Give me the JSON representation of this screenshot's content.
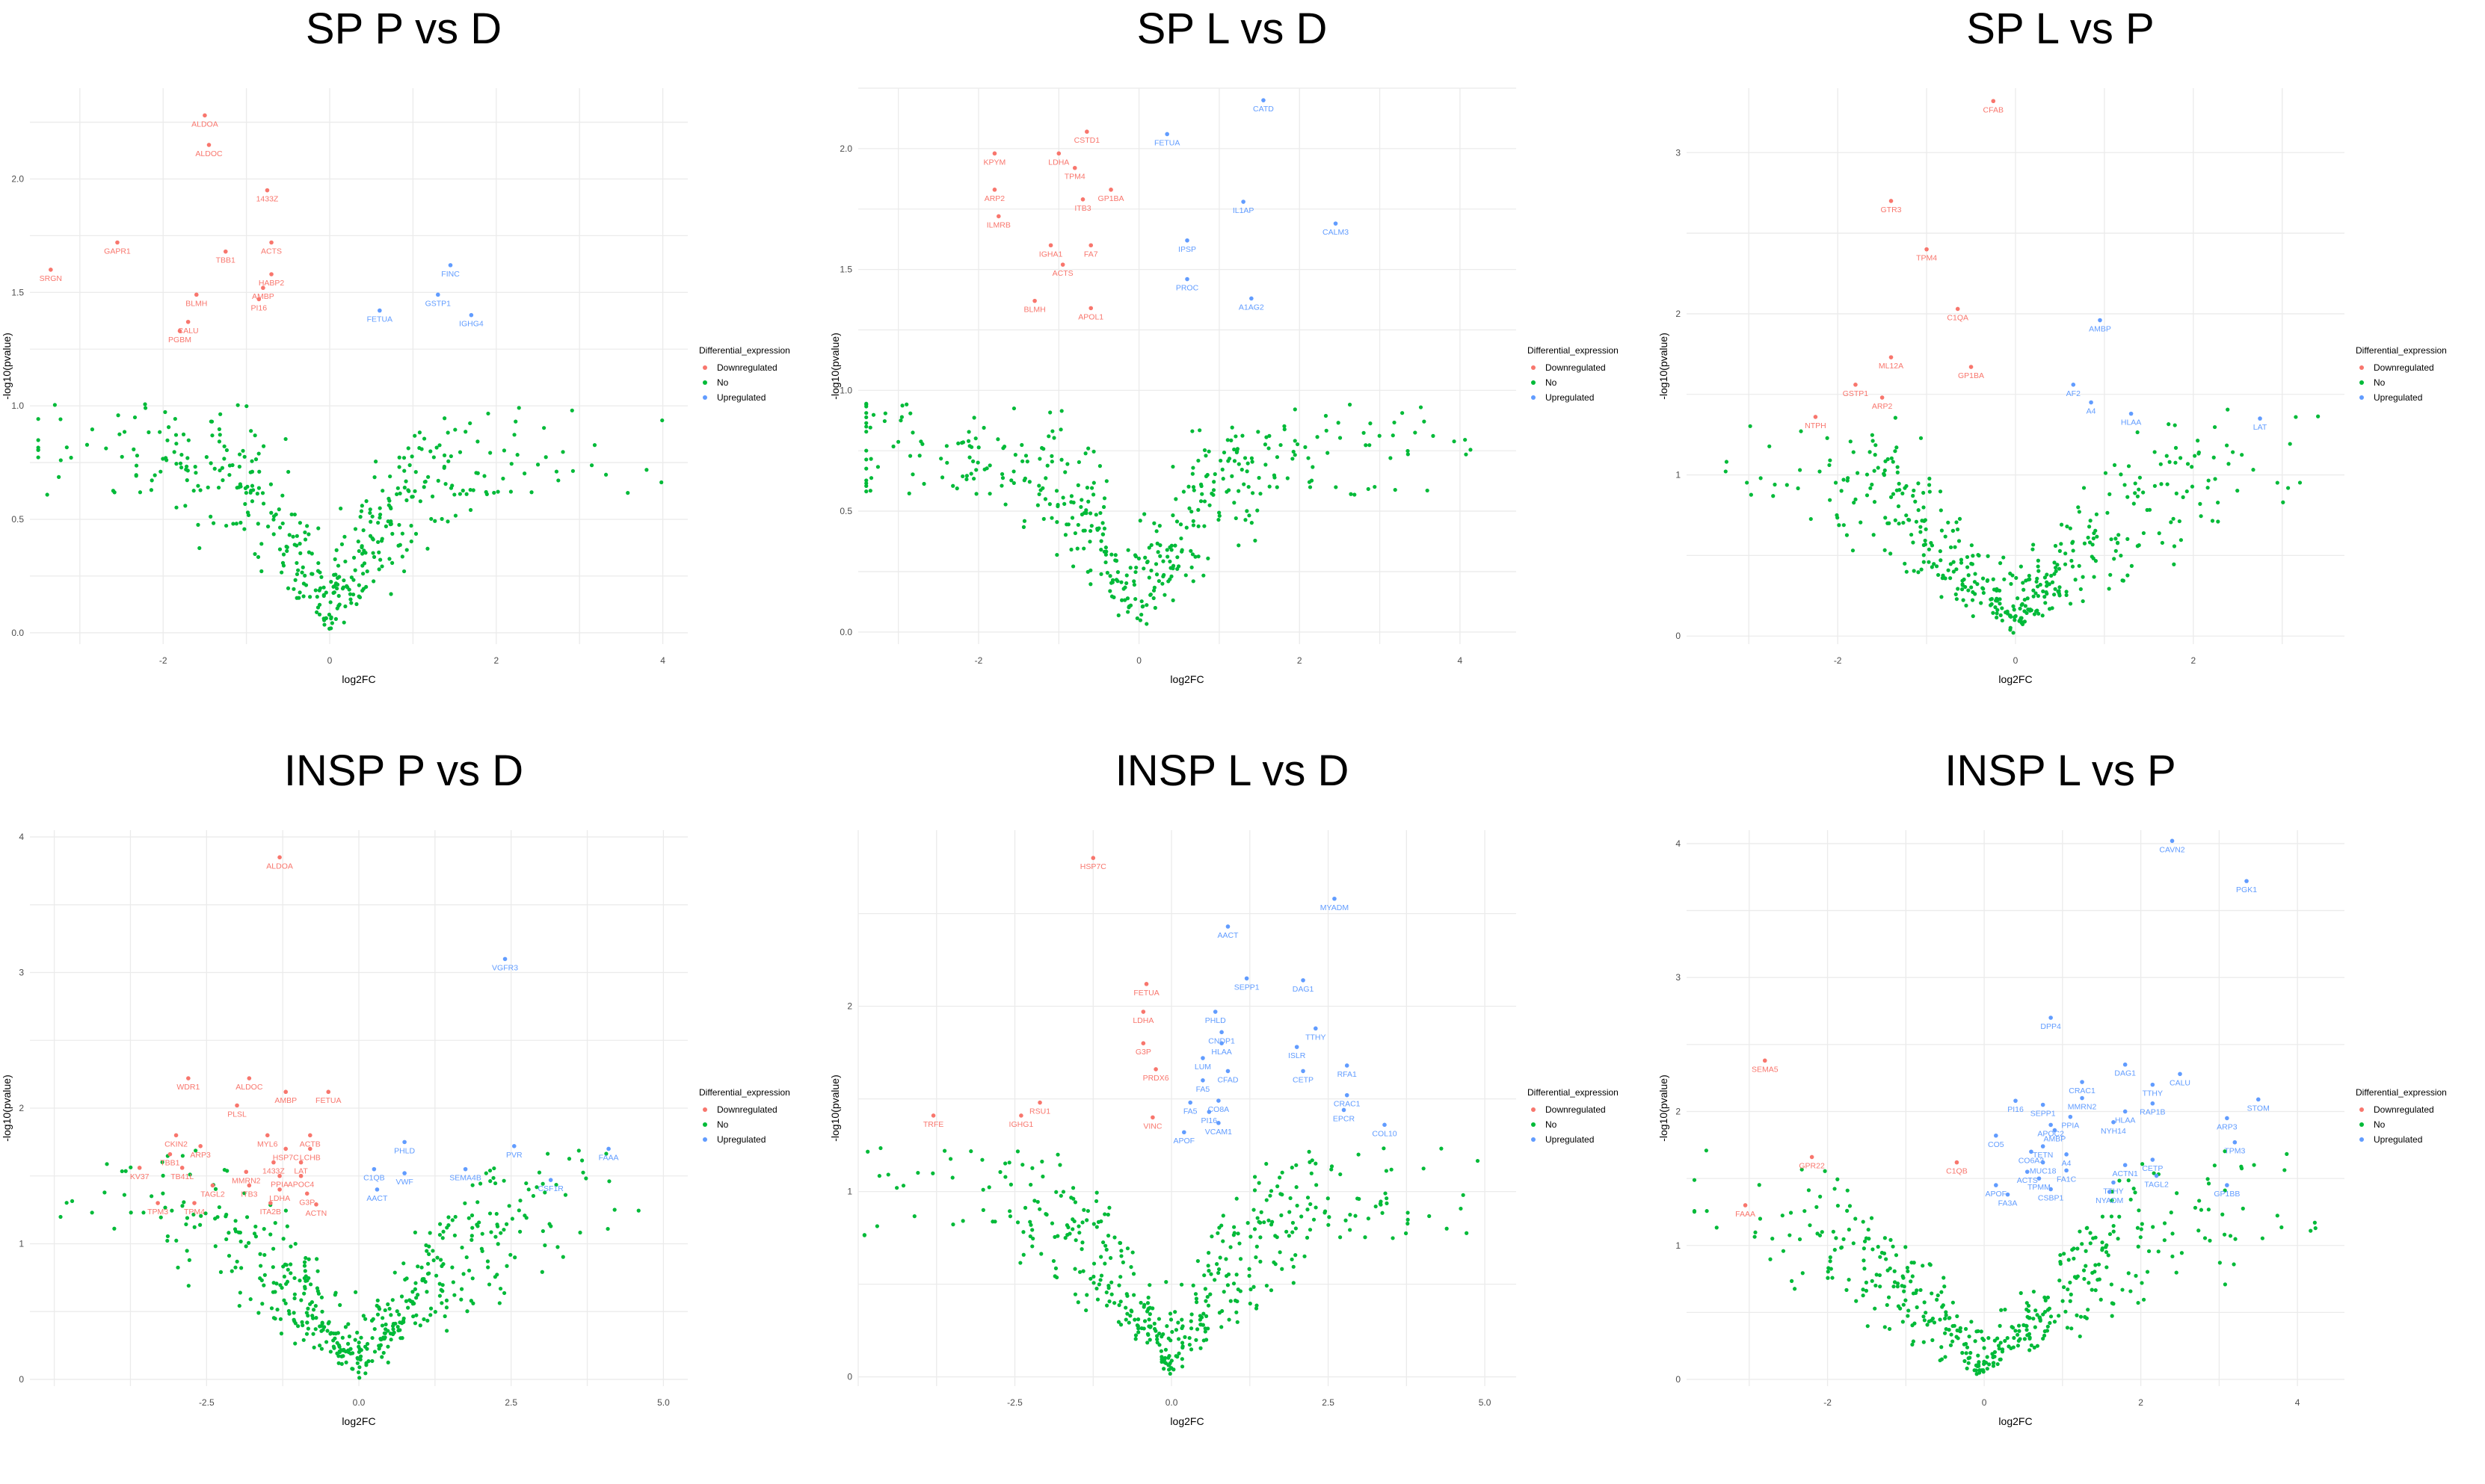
{
  "legend": {
    "title": "Differential_expression",
    "items": [
      {
        "label": "Downregulated",
        "color": "#F8766D"
      },
      {
        "label": "No",
        "color": "#00BA38"
      },
      {
        "label": "Upregulated",
        "color": "#619CFF"
      }
    ]
  },
  "chart_data": [
    {
      "type": "scatter",
      "title": "SP P vs D",
      "xlabel": "log2FC",
      "ylabel": "-log10(pvalue)",
      "xlim": [
        -3.6,
        4.3
      ],
      "ylim": [
        -0.05,
        2.4
      ],
      "xticks": [
        -2,
        0,
        2,
        4
      ],
      "xtick_labels": [
        "-2",
        "0",
        "2",
        "4"
      ],
      "yticks": [
        0,
        0.5,
        1,
        1.5,
        2
      ],
      "ytick_labels": [
        "0.0",
        "0.5",
        "1.0",
        "1.5",
        "2.0"
      ],
      "seed": 11,
      "ns_count": 430,
      "downregulated": [
        {
          "label": "ALDOA",
          "x": -1.5,
          "y": 2.28
        },
        {
          "label": "ALDOC",
          "x": -1.45,
          "y": 2.15
        },
        {
          "label": "1433Z",
          "x": -0.75,
          "y": 1.95
        },
        {
          "label": "GAPR1",
          "x": -2.55,
          "y": 1.72
        },
        {
          "label": "TBB1",
          "x": -1.25,
          "y": 1.68
        },
        {
          "label": "ACTS",
          "x": -0.7,
          "y": 1.72
        },
        {
          "label": "SRGN",
          "x": -3.35,
          "y": 1.6
        },
        {
          "label": "HABP2",
          "x": -0.7,
          "y": 1.58
        },
        {
          "label": "AMBP",
          "x": -0.8,
          "y": 1.52
        },
        {
          "label": "BLMH",
          "x": -1.6,
          "y": 1.49
        },
        {
          "label": "PI16",
          "x": -0.85,
          "y": 1.47
        },
        {
          "label": "CALU",
          "x": -1.7,
          "y": 1.37
        },
        {
          "label": "PGBM",
          "x": -1.8,
          "y": 1.33
        }
      ],
      "upregulated": [
        {
          "label": "FINC",
          "x": 1.45,
          "y": 1.62
        },
        {
          "label": "GSTP1",
          "x": 1.3,
          "y": 1.49
        },
        {
          "label": "FETUA",
          "x": 0.6,
          "y": 1.42
        },
        {
          "label": "IGHG4",
          "x": 1.7,
          "y": 1.4
        }
      ]
    },
    {
      "type": "scatter",
      "title": "SP L vs D",
      "xlabel": "log2FC",
      "ylabel": "-log10(pvalue)",
      "xlim": [
        -3.5,
        4.7
      ],
      "ylim": [
        -0.05,
        2.25
      ],
      "xticks": [
        -2,
        0,
        2,
        4
      ],
      "xtick_labels": [
        "-2",
        "0",
        "2",
        "4"
      ],
      "yticks": [
        0,
        0.5,
        1,
        1.5,
        2
      ],
      "ytick_labels": [
        "0.0",
        "0.5",
        "1.0",
        "1.5",
        "2.0"
      ],
      "seed": 23,
      "ns_count": 430,
      "downregulated": [
        {
          "label": "CSTD1",
          "x": -0.65,
          "y": 2.07
        },
        {
          "label": "KPYM",
          "x": -1.8,
          "y": 1.98
        },
        {
          "label": "LDHA",
          "x": -1.0,
          "y": 1.98
        },
        {
          "label": "TPM4",
          "x": -0.8,
          "y": 1.92
        },
        {
          "label": "ARP2",
          "x": -1.8,
          "y": 1.83
        },
        {
          "label": "GP1BA",
          "x": -0.35,
          "y": 1.83
        },
        {
          "label": "ITB3",
          "x": -0.7,
          "y": 1.79
        },
        {
          "label": "ILMRB",
          "x": -1.75,
          "y": 1.72
        },
        {
          "label": "IGHA1",
          "x": -1.1,
          "y": 1.6
        },
        {
          "label": "FA7",
          "x": -0.6,
          "y": 1.6
        },
        {
          "label": "ACTS",
          "x": -0.95,
          "y": 1.52
        },
        {
          "label": "BLMH",
          "x": -1.3,
          "y": 1.37
        },
        {
          "label": "APOL1",
          "x": -0.6,
          "y": 1.34
        }
      ],
      "upregulated": [
        {
          "label": "CATD",
          "x": 1.55,
          "y": 2.2
        },
        {
          "label": "FETUA",
          "x": 0.35,
          "y": 2.06
        },
        {
          "label": "IL1AP",
          "x": 1.3,
          "y": 1.78
        },
        {
          "label": "CALM3",
          "x": 2.45,
          "y": 1.69
        },
        {
          "label": "IPSP",
          "x": 0.6,
          "y": 1.62
        },
        {
          "label": "PROC",
          "x": 0.6,
          "y": 1.46
        },
        {
          "label": "A1AG2",
          "x": 1.4,
          "y": 1.38
        }
      ]
    },
    {
      "type": "scatter",
      "title": "SP L vs P",
      "xlabel": "log2FC",
      "ylabel": "-log10(pvalue)",
      "xlim": [
        -3.7,
        3.7
      ],
      "ylim": [
        -0.05,
        3.4
      ],
      "xticks": [
        -2,
        0,
        2
      ],
      "xtick_labels": [
        "-2",
        "0",
        "2"
      ],
      "yticks": [
        0,
        1,
        2,
        3
      ],
      "ytick_labels": [
        "0",
        "1",
        "2",
        "3"
      ],
      "seed": 37,
      "ns_count": 430,
      "downregulated": [
        {
          "label": "CFAB",
          "x": -0.25,
          "y": 3.32
        },
        {
          "label": "GTR3",
          "x": -1.4,
          "y": 2.7
        },
        {
          "label": "TPM4",
          "x": -1.0,
          "y": 2.4
        },
        {
          "label": "C1QA",
          "x": -0.65,
          "y": 2.03
        },
        {
          "label": "ML12A",
          "x": -1.4,
          "y": 1.73
        },
        {
          "label": "GP1BA",
          "x": -0.5,
          "y": 1.67
        },
        {
          "label": "GSTP1",
          "x": -1.8,
          "y": 1.56
        },
        {
          "label": "ARP2",
          "x": -1.5,
          "y": 1.48
        },
        {
          "label": "NTPH",
          "x": -2.25,
          "y": 1.36
        }
      ],
      "upregulated": [
        {
          "label": "AMBP",
          "x": 0.95,
          "y": 1.96
        },
        {
          "label": "AF2",
          "x": 0.65,
          "y": 1.56
        },
        {
          "label": "A4",
          "x": 0.85,
          "y": 1.45
        },
        {
          "label": "HLAA",
          "x": 1.3,
          "y": 1.38
        },
        {
          "label": "LAT",
          "x": 2.75,
          "y": 1.35
        }
      ]
    },
    {
      "type": "scatter",
      "title": "INSP P vs D",
      "xlabel": "log2FC",
      "ylabel": "-log10(pvalue)",
      "xlim": [
        -5.4,
        5.4
      ],
      "ylim": [
        -0.05,
        4.05
      ],
      "xticks": [
        -2.5,
        0,
        2.5,
        5
      ],
      "xtick_labels": [
        "-2.5",
        "0.0",
        "2.5",
        "5.0"
      ],
      "yticks": [
        0,
        1,
        2,
        3,
        4
      ],
      "ytick_labels": [
        "0",
        "1",
        "2",
        "3",
        "4"
      ],
      "seed": 53,
      "ns_count": 470,
      "downregulated": [
        {
          "label": "ALDOA",
          "x": -1.3,
          "y": 3.85
        },
        {
          "label": "WDR1",
          "x": -2.8,
          "y": 2.22
        },
        {
          "label": "ALDOC",
          "x": -1.8,
          "y": 2.22
        },
        {
          "label": "AMBP",
          "x": -1.2,
          "y": 2.12
        },
        {
          "label": "FETUA",
          "x": -0.5,
          "y": 2.12
        },
        {
          "label": "PLSL",
          "x": -2.0,
          "y": 2.02
        },
        {
          "label": "CKIN2",
          "x": -3.0,
          "y": 1.8
        },
        {
          "label": "MYL6",
          "x": -1.5,
          "y": 1.8
        },
        {
          "label": "ACTB",
          "x": -0.8,
          "y": 1.8
        },
        {
          "label": "ARP3",
          "x": -2.6,
          "y": 1.72
        },
        {
          "label": "HSP7C",
          "x": -1.2,
          "y": 1.7
        },
        {
          "label": "LCHB",
          "x": -0.8,
          "y": 1.7
        },
        {
          "label": "TBB1",
          "x": -3.1,
          "y": 1.66
        },
        {
          "label": "1433Z",
          "x": -1.4,
          "y": 1.6
        },
        {
          "label": "LAT",
          "x": -0.95,
          "y": 1.6
        },
        {
          "label": "KV37",
          "x": -3.6,
          "y": 1.56
        },
        {
          "label": "TB41L",
          "x": -2.9,
          "y": 1.56
        },
        {
          "label": "MMRN2",
          "x": -1.85,
          "y": 1.53
        },
        {
          "label": "PPIA",
          "x": -1.3,
          "y": 1.5
        },
        {
          "label": "APOC4",
          "x": -0.95,
          "y": 1.5
        },
        {
          "label": "TAGL2",
          "x": -2.4,
          "y": 1.43
        },
        {
          "label": "ITB3",
          "x": -1.8,
          "y": 1.43
        },
        {
          "label": "LDHA",
          "x": -1.3,
          "y": 1.4
        },
        {
          "label": "G3P",
          "x": -0.85,
          "y": 1.37
        },
        {
          "label": "TPM3",
          "x": -3.3,
          "y": 1.3
        },
        {
          "label": "TPM4",
          "x": -2.7,
          "y": 1.3
        },
        {
          "label": "ITA2B",
          "x": -1.45,
          "y": 1.3
        },
        {
          "label": "ACTN",
          "x": -0.7,
          "y": 1.29
        }
      ],
      "upregulated": [
        {
          "label": "VGFR3",
          "x": 2.4,
          "y": 3.1
        },
        {
          "label": "PHLD",
          "x": 0.75,
          "y": 1.75
        },
        {
          "label": "PVR",
          "x": 2.55,
          "y": 1.72
        },
        {
          "label": "FAAA",
          "x": 4.1,
          "y": 1.7
        },
        {
          "label": "C1QB",
          "x": 0.25,
          "y": 1.55
        },
        {
          "label": "VWF",
          "x": 0.75,
          "y": 1.52
        },
        {
          "label": "SEMA4B",
          "x": 1.75,
          "y": 1.55
        },
        {
          "label": "CSF1R",
          "x": 3.15,
          "y": 1.47
        },
        {
          "label": "AACT",
          "x": 0.3,
          "y": 1.4
        }
      ]
    },
    {
      "type": "scatter",
      "title": "INSP L vs D",
      "xlabel": "log2FC",
      "ylabel": "-log10(pvalue)",
      "xlim": [
        -5.0,
        5.5
      ],
      "ylim": [
        -0.05,
        2.95
      ],
      "xticks": [
        -2.5,
        0,
        2.5,
        5
      ],
      "xtick_labels": [
        "-2.5",
        "0.0",
        "2.5",
        "5.0"
      ],
      "yticks": [
        0,
        1,
        2
      ],
      "ytick_labels": [
        "0",
        "1",
        "2"
      ],
      "seed": 71,
      "ns_count": 430,
      "downregulated": [
        {
          "label": "HSP7C",
          "x": -1.25,
          "y": 2.8
        },
        {
          "label": "FETUA",
          "x": -0.4,
          "y": 2.12
        },
        {
          "label": "LDHA",
          "x": -0.45,
          "y": 1.97
        },
        {
          "label": "G3P",
          "x": -0.45,
          "y": 1.8
        },
        {
          "label": "PRDX6",
          "x": -0.25,
          "y": 1.66
        },
        {
          "label": "RSU1",
          "x": -2.1,
          "y": 1.48
        },
        {
          "label": "IGHG1",
          "x": -2.4,
          "y": 1.41
        },
        {
          "label": "VINC",
          "x": -0.3,
          "y": 1.4
        },
        {
          "label": "TRFE",
          "x": -3.8,
          "y": 1.41
        }
      ],
      "upregulated": [
        {
          "label": "MYADM",
          "x": 2.6,
          "y": 2.58
        },
        {
          "label": "AACT",
          "x": 0.9,
          "y": 2.43
        },
        {
          "label": "SEPP1",
          "x": 1.2,
          "y": 2.15
        },
        {
          "label": "DAG1",
          "x": 2.1,
          "y": 2.14
        },
        {
          "label": "PHLD",
          "x": 0.7,
          "y": 1.97
        },
        {
          "label": "TTHY",
          "x": 2.3,
          "y": 1.88
        },
        {
          "label": "CNDP1",
          "x": 0.8,
          "y": 1.86
        },
        {
          "label": "HLAA",
          "x": 0.8,
          "y": 1.8
        },
        {
          "label": "ISLR",
          "x": 2.0,
          "y": 1.78
        },
        {
          "label": "LUM",
          "x": 0.5,
          "y": 1.72
        },
        {
          "label": "RFA1",
          "x": 2.8,
          "y": 1.68
        },
        {
          "label": "CFAD",
          "x": 0.9,
          "y": 1.65
        },
        {
          "label": "CETP",
          "x": 2.1,
          "y": 1.65
        },
        {
          "label": "FA5",
          "x": 0.5,
          "y": 1.6
        },
        {
          "label": "CRAC1",
          "x": 2.8,
          "y": 1.52
        },
        {
          "label": "CO8A",
          "x": 0.75,
          "y": 1.49
        },
        {
          "label": "FA5",
          "x": 0.3,
          "y": 1.48
        },
        {
          "label": "EPCR",
          "x": 2.75,
          "y": 1.44
        },
        {
          "label": "PI16",
          "x": 0.6,
          "y": 1.43
        },
        {
          "label": "COL10",
          "x": 3.4,
          "y": 1.36
        },
        {
          "label": "VCAM1",
          "x": 0.75,
          "y": 1.37
        },
        {
          "label": "APOF",
          "x": 0.2,
          "y": 1.32
        }
      ]
    },
    {
      "type": "scatter",
      "title": "INSP L vs P",
      "xlabel": "log2FC",
      "ylabel": "-log10(pvalue)",
      "xlim": [
        -3.8,
        4.6
      ],
      "ylim": [
        -0.05,
        4.1
      ],
      "xticks": [
        -2,
        0,
        2,
        4
      ],
      "xtick_labels": [
        "-2",
        "0",
        "2",
        "4"
      ],
      "yticks": [
        0,
        1,
        2,
        3,
        4
      ],
      "ytick_labels": [
        "0",
        "1",
        "2",
        "3",
        "4"
      ],
      "seed": 97,
      "ns_count": 430,
      "downregulated": [
        {
          "label": "SEMA5",
          "x": -2.8,
          "y": 2.38
        },
        {
          "label": "GPR22",
          "x": -2.2,
          "y": 1.66
        },
        {
          "label": "C1QB",
          "x": -0.35,
          "y": 1.62
        },
        {
          "label": "FAAA",
          "x": -3.05,
          "y": 1.3
        }
      ],
      "upregulated": [
        {
          "label": "CAVN2",
          "x": 2.4,
          "y": 4.02
        },
        {
          "label": "PGK1",
          "x": 3.35,
          "y": 3.72
        },
        {
          "label": "DPP4",
          "x": 0.85,
          "y": 2.7
        },
        {
          "label": "DAG1",
          "x": 1.8,
          "y": 2.35
        },
        {
          "label": "CALU",
          "x": 2.5,
          "y": 2.28
        },
        {
          "label": "CRAC1",
          "x": 1.25,
          "y": 2.22
        },
        {
          "label": "TTHY",
          "x": 2.15,
          "y": 2.2
        },
        {
          "label": "STOM",
          "x": 3.5,
          "y": 2.09
        },
        {
          "label": "MMRN2",
          "x": 1.25,
          "y": 2.1
        },
        {
          "label": "PI16",
          "x": 0.4,
          "y": 2.08
        },
        {
          "label": "SEPP1",
          "x": 0.75,
          "y": 2.05
        },
        {
          "label": "RAP1B",
          "x": 2.15,
          "y": 2.06
        },
        {
          "label": "HLAA",
          "x": 1.8,
          "y": 2.0
        },
        {
          "label": "ARP3",
          "x": 3.1,
          "y": 1.95
        },
        {
          "label": "PPIA",
          "x": 1.1,
          "y": 1.96
        },
        {
          "label": "NYH14",
          "x": 1.65,
          "y": 1.92
        },
        {
          "label": "APOC2",
          "x": 0.85,
          "y": 1.9
        },
        {
          "label": "AMBP",
          "x": 0.9,
          "y": 1.86
        },
        {
          "label": "CO5",
          "x": 0.15,
          "y": 1.82
        },
        {
          "label": "TPM3",
          "x": 3.2,
          "y": 1.77
        },
        {
          "label": "TETN",
          "x": 0.75,
          "y": 1.74
        },
        {
          "label": "CO6A3",
          "x": 0.6,
          "y": 1.7
        },
        {
          "label": "A4",
          "x": 1.05,
          "y": 1.68
        },
        {
          "label": "MUC18",
          "x": 0.75,
          "y": 1.62
        },
        {
          "label": "CETP",
          "x": 2.15,
          "y": 1.64
        },
        {
          "label": "ACTN1",
          "x": 1.8,
          "y": 1.6
        },
        {
          "label": "ACTS",
          "x": 0.55,
          "y": 1.55
        },
        {
          "label": "FA1C",
          "x": 1.05,
          "y": 1.56
        },
        {
          "label": "TPMM",
          "x": 0.7,
          "y": 1.5
        },
        {
          "label": "TAGL2",
          "x": 2.2,
          "y": 1.52
        },
        {
          "label": "TTHY",
          "x": 1.65,
          "y": 1.47
        },
        {
          "label": "APOF",
          "x": 0.15,
          "y": 1.45
        },
        {
          "label": "GP1BB",
          "x": 3.1,
          "y": 1.45
        },
        {
          "label": "CSBP1",
          "x": 0.85,
          "y": 1.42
        },
        {
          "label": "FA3A",
          "x": 0.3,
          "y": 1.38
        },
        {
          "label": "NYADM",
          "x": 1.6,
          "y": 1.4
        }
      ]
    }
  ]
}
